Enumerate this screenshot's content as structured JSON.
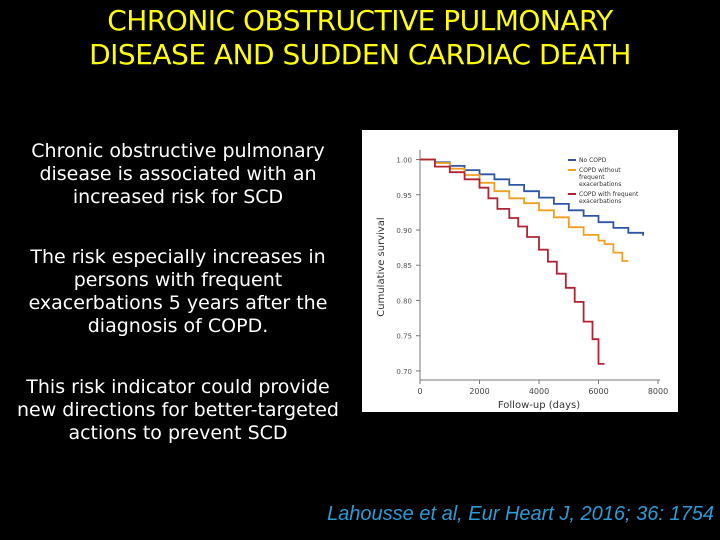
{
  "slide": {
    "title_line1": "CHRONIC OBSTRUCTIVE PULMONARY",
    "title_line2": "DISEASE AND SUDDEN CARDIAC DEATH",
    "para1": "Chronic obstructive pulmonary disease is associated with an increased risk for SCD",
    "para2": "The risk especially increases in persons with frequent exacerbations 5 years after the diagnosis of COPD.",
    "para3": "This risk indicator could provide new directions for better-targeted actions to prevent SCD",
    "citation": "Lahousse et al, Eur Heart J, 2016; 36: 1754"
  },
  "chart_data": {
    "type": "line",
    "title": "",
    "xlabel": "Follow-up (days)",
    "ylabel": "Cumulative survival",
    "xlim": [
      0,
      8000
    ],
    "ylim": [
      0.69,
      1.005
    ],
    "x_ticks": [
      0,
      2000,
      4000,
      6000,
      8000
    ],
    "x_tick_labels": [
      "0",
      "2000",
      "4000",
      "6000",
      "8000"
    ],
    "y_ticks": [
      0.7,
      0.75,
      0.8,
      0.85,
      0.9,
      0.95,
      1.0
    ],
    "y_tick_labels": [
      "0.70",
      "0.75",
      "0.80",
      "0.85",
      "0.90",
      "0.95",
      "1.00"
    ],
    "grid": false,
    "legend_position": "top-right",
    "series": [
      {
        "name": "No COPD",
        "color": "#2f56a6",
        "x": [
          0,
          500,
          1000,
          1500,
          2000,
          2500,
          3000,
          3500,
          4000,
          4500,
          5000,
          5500,
          6000,
          6500,
          7000,
          7500
        ],
        "y": [
          1.0,
          0.996,
          0.991,
          0.985,
          0.979,
          0.972,
          0.964,
          0.955,
          0.946,
          0.937,
          0.928,
          0.92,
          0.911,
          0.903,
          0.896,
          0.892
        ]
      },
      {
        "name": "COPD without frequent exacerbations",
        "color": "#f0a020",
        "x": [
          0,
          500,
          1000,
          1500,
          2000,
          2500,
          3000,
          3500,
          4000,
          4500,
          5000,
          5500,
          6000,
          6200,
          6500,
          6800,
          7000
        ],
        "y": [
          1.0,
          0.995,
          0.987,
          0.978,
          0.967,
          0.955,
          0.945,
          0.938,
          0.928,
          0.918,
          0.904,
          0.893,
          0.885,
          0.88,
          0.868,
          0.856,
          0.856
        ]
      },
      {
        "name": "COPD with frequent exacerbations",
        "color": "#b22433",
        "x": [
          0,
          500,
          1000,
          1500,
          2000,
          2300,
          2600,
          3000,
          3300,
          3600,
          4000,
          4300,
          4600,
          4900,
          5200,
          5500,
          5800,
          6000,
          6200
        ],
        "y": [
          1.0,
          0.99,
          0.982,
          0.972,
          0.96,
          0.945,
          0.93,
          0.917,
          0.905,
          0.89,
          0.872,
          0.855,
          0.838,
          0.818,
          0.798,
          0.77,
          0.745,
          0.71,
          0.71
        ]
      }
    ]
  }
}
